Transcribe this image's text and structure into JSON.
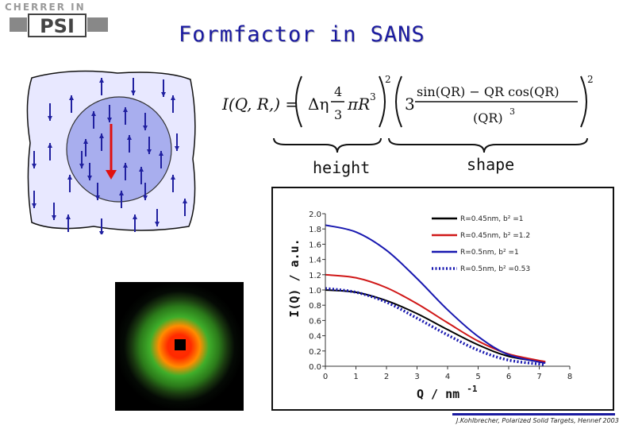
{
  "header": {
    "logo_small": "CHERRER IN",
    "logo_big": "PSI",
    "title": "Formfactor in SANS"
  },
  "formula": {
    "lhs": "I(Q, R,) =",
    "delta_eta": "Δη",
    "frac_num": "4",
    "frac_den": "3",
    "pi_r3": "πR",
    "cube": "3",
    "square": "2",
    "three": "3",
    "shape_num": "sin(QR) − QR cos(QR)",
    "shape_den": "(QR)",
    "den_exp": "3"
  },
  "labels": {
    "height": "height",
    "shape": "shape"
  },
  "footer": {
    "text": "J.Kohlbrecher, Polarized Solid Targets, Hennef 2003"
  },
  "chart_data": {
    "type": "line",
    "xlabel": "Q / nm",
    "xlabel_exp": "-1",
    "ylabel": "I(Q) / a.u.",
    "xlim": [
      0,
      8
    ],
    "ylim": [
      0,
      2.0
    ],
    "x_ticks": [
      "0",
      "1",
      "2",
      "3",
      "4",
      "5",
      "6",
      "7",
      "8"
    ],
    "y_ticks": [
      "0.0",
      "0.2",
      "0.4",
      "0.6",
      "0.8",
      "1.0",
      "1.2",
      "1.4",
      "1.6",
      "1.8",
      "2.0"
    ],
    "legend_position": "top-right",
    "series": [
      {
        "name": "R=0.45nm, b² =1",
        "color": "#000000",
        "style": "solid",
        "x": [
          0,
          1,
          2,
          3,
          4,
          5,
          6,
          7.2
        ],
        "y": [
          1.0,
          0.97,
          0.86,
          0.69,
          0.48,
          0.28,
          0.13,
          0.05
        ]
      },
      {
        "name": "R=0.45nm, b² =1.2",
        "color": "#d01818",
        "style": "solid",
        "x": [
          0,
          1,
          2,
          3,
          4,
          5,
          6,
          7.2
        ],
        "y": [
          1.2,
          1.16,
          1.03,
          0.82,
          0.57,
          0.33,
          0.16,
          0.06
        ]
      },
      {
        "name": "R=0.5nm,  b² =1",
        "color": "#1818b0",
        "style": "solid",
        "x": [
          0,
          1,
          2,
          3,
          4,
          5,
          6,
          7.2
        ],
        "y": [
          1.85,
          1.76,
          1.52,
          1.15,
          0.74,
          0.39,
          0.15,
          0.04
        ]
      },
      {
        "name": "R=0.5nm,  b² =0.53",
        "color": "#1818b0",
        "style": "dotted",
        "x": [
          0,
          1,
          2,
          3,
          4,
          5,
          6,
          7.2
        ],
        "y": [
          1.02,
          0.97,
          0.84,
          0.63,
          0.41,
          0.21,
          0.08,
          0.02
        ]
      }
    ]
  }
}
